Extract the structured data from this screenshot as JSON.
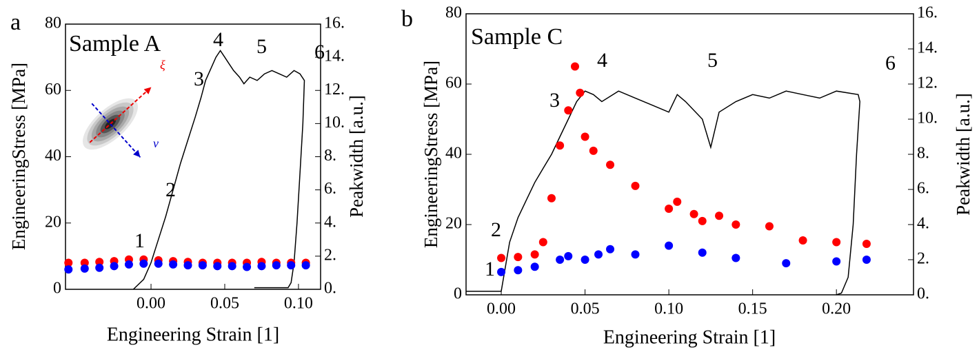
{
  "chart_data": [
    {
      "type": "line",
      "panel_label": "a",
      "x_label": "Engineering Strain [1]",
      "y_label": "EngineeringStress [MPa]",
      "y2_label": "Peakwidth [a.u.]",
      "annotations": [
        "Sample A",
        "1",
        "2",
        "3",
        "4",
        "5",
        "6",
        "ξ",
        "ν"
      ],
      "xlim": [
        -0.058,
        0.115
      ],
      "ylim": [
        0,
        80
      ],
      "y2lim": [
        0,
        16
      ],
      "xticks": [
        {
          "value": 0,
          "label": "0.00"
        },
        0.05,
        {
          "value": 0.1,
          "label": "0.10"
        }
      ],
      "yticks": [
        0,
        20,
        40,
        60,
        80
      ],
      "y2ticks": [
        {
          "value": 0,
          "label": "0."
        },
        {
          "value": 2,
          "label": "2."
        },
        {
          "value": 4,
          "label": "4."
        },
        {
          "value": 6,
          "label": "6."
        },
        {
          "value": 8,
          "label": "8."
        },
        {
          "value": 10,
          "label": "10."
        },
        {
          "value": 12,
          "label": "12."
        },
        {
          "value": 14,
          "label": "14."
        },
        {
          "value": 16,
          "label": "16."
        }
      ],
      "series": [
        {
          "mode": "line",
          "color": "#000000",
          "x": [
            -0.012,
            -0.005,
            0,
            0.005,
            0.01,
            0.015,
            0.02,
            0.025,
            0.03,
            0.034,
            0.037,
            0.04,
            0.044,
            0.047,
            0.05,
            0.053,
            0.056,
            0.06,
            0.063,
            0.067,
            0.072,
            0.077,
            0.082,
            0.087,
            0.092,
            0.097,
            0.101,
            0.104,
            0.103,
            0.101,
            0.099,
            0.097,
            0.095,
            0.093,
            0.085,
            0.07
          ],
          "values": [
            0,
            3,
            8,
            15,
            22,
            30,
            38,
            45,
            52,
            58,
            63,
            66,
            70,
            72,
            70,
            68,
            66,
            64,
            62,
            64,
            63,
            65,
            66,
            65,
            64,
            66,
            65,
            63,
            50,
            35,
            20,
            8,
            2,
            0.5,
            0.5,
            0.5
          ]
        },
        {
          "mode": "markers",
          "color": "#ff0000",
          "axis": "y2",
          "x": [
            -0.056,
            -0.045,
            -0.035,
            -0.025,
            -0.015,
            -0.005,
            0.005,
            0.015,
            0.025,
            0.035,
            0.045,
            0.055,
            0.065,
            0.075,
            0.085,
            0.095,
            0.105
          ],
          "values": [
            1.6,
            1.6,
            1.65,
            1.7,
            1.8,
            1.8,
            1.75,
            1.7,
            1.65,
            1.6,
            1.6,
            1.6,
            1.6,
            1.65,
            1.6,
            1.6,
            1.6
          ]
        },
        {
          "mode": "markers",
          "color": "#0000ff",
          "axis": "y2",
          "x": [
            -0.056,
            -0.045,
            -0.035,
            -0.025,
            -0.015,
            -0.005,
            0.005,
            0.015,
            0.025,
            0.035,
            0.045,
            0.055,
            0.065,
            0.075,
            0.085,
            0.095,
            0.105
          ],
          "values": [
            1.2,
            1.25,
            1.3,
            1.4,
            1.5,
            1.55,
            1.55,
            1.5,
            1.45,
            1.45,
            1.4,
            1.4,
            1.35,
            1.4,
            1.45,
            1.45,
            1.45
          ]
        }
      ]
    },
    {
      "type": "line",
      "panel_label": "b",
      "x_label": "Engineering Strain [1]",
      "y_label": "EngineeringStress [MPa]",
      "y2_label": "Peakwidth [a.u.]",
      "annotations": [
        "Sample C",
        "1",
        "2",
        "3",
        "4",
        "5",
        "6"
      ],
      "xlim": [
        -0.021,
        0.246
      ],
      "ylim": [
        0,
        80
      ],
      "y2lim": [
        0,
        16
      ],
      "xticks": [
        {
          "value": 0,
          "label": "0.00"
        },
        0.05,
        {
          "value": 0.1,
          "label": "0.10"
        },
        0.15,
        {
          "value": 0.2,
          "label": "0.20"
        }
      ],
      "yticks": [
        0,
        20,
        40,
        60,
        80
      ],
      "y2ticks": [
        {
          "value": 0,
          "label": "0."
        },
        {
          "value": 2,
          "label": "2."
        },
        {
          "value": 4,
          "label": "4."
        },
        {
          "value": 6,
          "label": "6."
        },
        {
          "value": 8,
          "label": "8."
        },
        {
          "value": 10,
          "label": "10."
        },
        {
          "value": 12,
          "label": "12."
        },
        {
          "value": 14,
          "label": "14."
        },
        {
          "value": 16,
          "label": "16."
        }
      ],
      "series": [
        {
          "mode": "line",
          "color": "#000000",
          "x": [
            -0.021,
            -0.01,
            0,
            0.005,
            0.01,
            0.015,
            0.02,
            0.025,
            0.03,
            0.035,
            0.04,
            0.045,
            0.05,
            0.055,
            0.06,
            0.07,
            0.08,
            0.09,
            0.1,
            0.105,
            0.11,
            0.12,
            0.125,
            0.13,
            0.14,
            0.15,
            0.16,
            0.17,
            0.18,
            0.19,
            0.2,
            0.213,
            0.214,
            0.212,
            0.21,
            0.207,
            0.203,
            0.2
          ],
          "values": [
            1,
            1,
            1,
            15,
            22,
            27,
            32,
            36,
            40,
            45,
            50,
            55,
            58,
            57,
            55,
            58,
            56,
            54,
            52,
            57,
            55,
            50,
            42,
            52,
            55,
            57,
            56,
            58,
            57,
            56,
            58,
            57,
            55,
            40,
            20,
            5,
            0.5,
            0
          ]
        },
        {
          "mode": "markers",
          "color": "#ff0000",
          "axis": "y2",
          "x": [
            0,
            0.01,
            0.02,
            0.025,
            0.03,
            0.035,
            0.04,
            0.044,
            0.047,
            0.05,
            0.055,
            0.065,
            0.08,
            0.1,
            0.105,
            0.115,
            0.12,
            0.13,
            0.14,
            0.16,
            0.18,
            0.2,
            0.218
          ],
          "values": [
            2.1,
            2.15,
            2.3,
            3.0,
            5.5,
            8.5,
            10.5,
            13,
            11.5,
            9,
            8.2,
            7.4,
            6.2,
            4.9,
            5.3,
            4.6,
            4.2,
            4.5,
            4.0,
            3.9,
            3.1,
            3.0,
            2.9
          ]
        },
        {
          "mode": "markers",
          "color": "#0000ff",
          "axis": "y2",
          "x": [
            0,
            0.01,
            0.02,
            0.035,
            0.04,
            0.05,
            0.058,
            0.062,
            0.065,
            0.08,
            0.1,
            0.12,
            0.14,
            0.17,
            0.2,
            0.218
          ],
          "values": [
            1.3,
            1.4,
            1.6,
            2.0,
            2.2,
            2.0,
            2.3,
            null,
            2.6,
            2.3,
            2.8,
            2.4,
            2.1,
            1.8,
            1.9,
            2.0
          ]
        }
      ]
    }
  ]
}
